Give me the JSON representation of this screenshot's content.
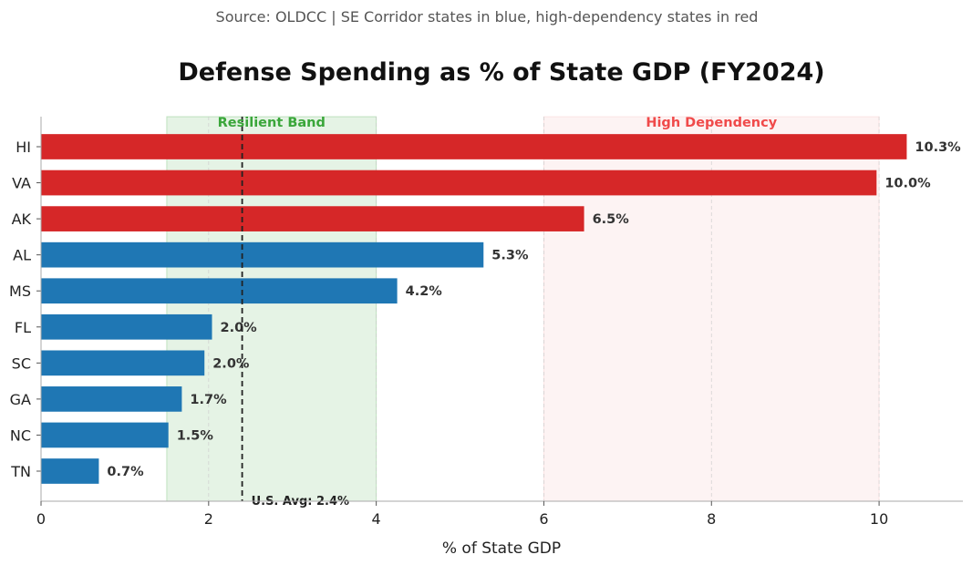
{
  "chart_data": {
    "type": "bar",
    "orientation": "horizontal",
    "subtitle": "Source: OLDCC | SE Corridor states in blue, high-dependency states in red",
    "title": "Defense Spending as % of State GDP (FY2024)",
    "xlabel": "% of State GDP",
    "ylabel": "",
    "xlim": [
      0,
      11
    ],
    "xticks": [
      0,
      2,
      4,
      6,
      8,
      10
    ],
    "xtick_labels": [
      "0",
      "2",
      "4",
      "6",
      "8",
      "10"
    ],
    "grid": "vertical dashed",
    "bars": [
      {
        "label": "HI",
        "value": 10.33,
        "value_label": "10.3%",
        "color": "#d62728"
      },
      {
        "label": "VA",
        "value": 9.97,
        "value_label": "10.0%",
        "color": "#d62728"
      },
      {
        "label": "AK",
        "value": 6.48,
        "value_label": "6.5%",
        "color": "#d62728"
      },
      {
        "label": "AL",
        "value": 5.28,
        "value_label": "5.3%",
        "color": "#1f77b4"
      },
      {
        "label": "MS",
        "value": 4.25,
        "value_label": "4.2%",
        "color": "#1f77b4"
      },
      {
        "label": "FL",
        "value": 2.04,
        "value_label": "2.0%",
        "color": "#1f77b4"
      },
      {
        "label": "SC",
        "value": 1.95,
        "value_label": "2.0%",
        "color": "#1f77b4"
      },
      {
        "label": "GA",
        "value": 1.68,
        "value_label": "1.7%",
        "color": "#1f77b4"
      },
      {
        "label": "NC",
        "value": 1.52,
        "value_label": "1.5%",
        "color": "#1f77b4"
      },
      {
        "label": "TN",
        "value": 0.69,
        "value_label": "0.7%",
        "color": "#1f77b4"
      }
    ],
    "bands": [
      {
        "label": "Resilient Band",
        "from": 1.5,
        "to": 4.0,
        "color": "#2ca02c",
        "label_color": "#3aa63a"
      },
      {
        "label": "High Dependency",
        "from": 6.0,
        "to": 10.0,
        "color": "#f4a7a7",
        "label_color": "#f04a4a"
      }
    ],
    "reference_line": {
      "label": "U.S. Avg: 2.4%",
      "value": 2.4
    }
  }
}
